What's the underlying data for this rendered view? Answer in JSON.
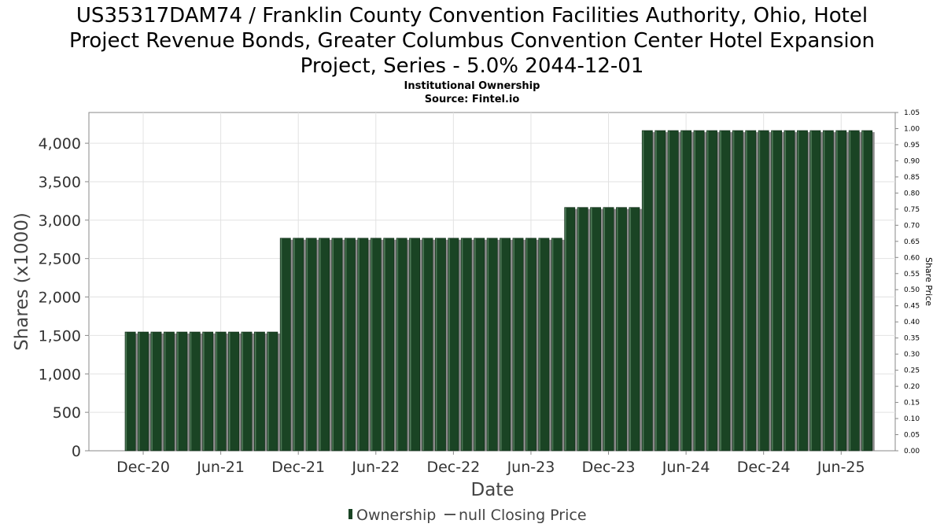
{
  "chart_data": {
    "type": "bar",
    "title_lines": [
      "US35317DAM74 / Franklin County Convention Facilities Authority, Ohio, Hotel",
      "Project Revenue Bonds, Greater Columbus Convention Center Hotel Expansion",
      "Project, Series - 5.0% 2044-12-01"
    ],
    "subtitle_lines": [
      "Institutional Ownership",
      "Source: Fintel.io"
    ],
    "xlabel": "Date",
    "ylabel": "Shares (x1000)",
    "y2label": "Share Price",
    "ylim": [
      0,
      4400
    ],
    "y2lim": [
      0,
      1.05
    ],
    "yticks": [
      0,
      500,
      1000,
      1500,
      2000,
      2500,
      3000,
      3500,
      4000
    ],
    "ytick_labels": [
      "0",
      "500",
      "1,000",
      "1,500",
      "2,000",
      "2,500",
      "3,000",
      "3,500",
      "4,000"
    ],
    "y2ticks": [
      0,
      0.05,
      0.1,
      0.15,
      0.2,
      0.25,
      0.3,
      0.35,
      0.4,
      0.45,
      0.5,
      0.55,
      0.6,
      0.65,
      0.7,
      0.75,
      0.8,
      0.85,
      0.9,
      0.95,
      1.0,
      1.05
    ],
    "y2tick_labels": [
      "0.00",
      "0.05",
      "0.10",
      "0.15",
      "0.20",
      "0.25",
      "0.30",
      "0.35",
      "0.40",
      "0.45",
      "0.50",
      "0.55",
      "0.60",
      "0.65",
      "0.70",
      "0.75",
      "0.80",
      "0.85",
      "0.90",
      "0.95",
      "1.00",
      "1.05"
    ],
    "xticks": [
      {
        "label": "Dec-20",
        "index": 1
      },
      {
        "label": "Jun-21",
        "index": 7
      },
      {
        "label": "Dec-21",
        "index": 13
      },
      {
        "label": "Jun-22",
        "index": 19
      },
      {
        "label": "Dec-22",
        "index": 25
      },
      {
        "label": "Jun-23",
        "index": 31
      },
      {
        "label": "Dec-23",
        "index": 37
      },
      {
        "label": "Jun-24",
        "index": 43
      },
      {
        "label": "Dec-24",
        "index": 49
      },
      {
        "label": "Jun-25",
        "index": 55
      }
    ],
    "series": [
      {
        "name": "Ownership",
        "color": "#1a4424",
        "values": [
          1545,
          1545,
          1545,
          1545,
          1545,
          1545,
          1545,
          1545,
          1545,
          1545,
          1545,
          1545,
          2765,
          2765,
          2765,
          2765,
          2765,
          2765,
          2765,
          2765,
          2765,
          2765,
          2765,
          2765,
          2765,
          2765,
          2765,
          2765,
          2765,
          2765,
          2765,
          2765,
          2765,
          2765,
          3165,
          3165,
          3165,
          3165,
          3165,
          3165,
          4165,
          4165,
          4165,
          4165,
          4165,
          4165,
          4165,
          4165,
          4165,
          4165,
          4165,
          4165,
          4165,
          4165,
          4165,
          4165,
          4165,
          4165
        ]
      }
    ],
    "legend": [
      {
        "label": "Ownership",
        "kind": "bar",
        "color": "#1a4424"
      },
      {
        "label": "null Closing Price",
        "kind": "line",
        "color": "#555555"
      }
    ],
    "grid": true
  }
}
